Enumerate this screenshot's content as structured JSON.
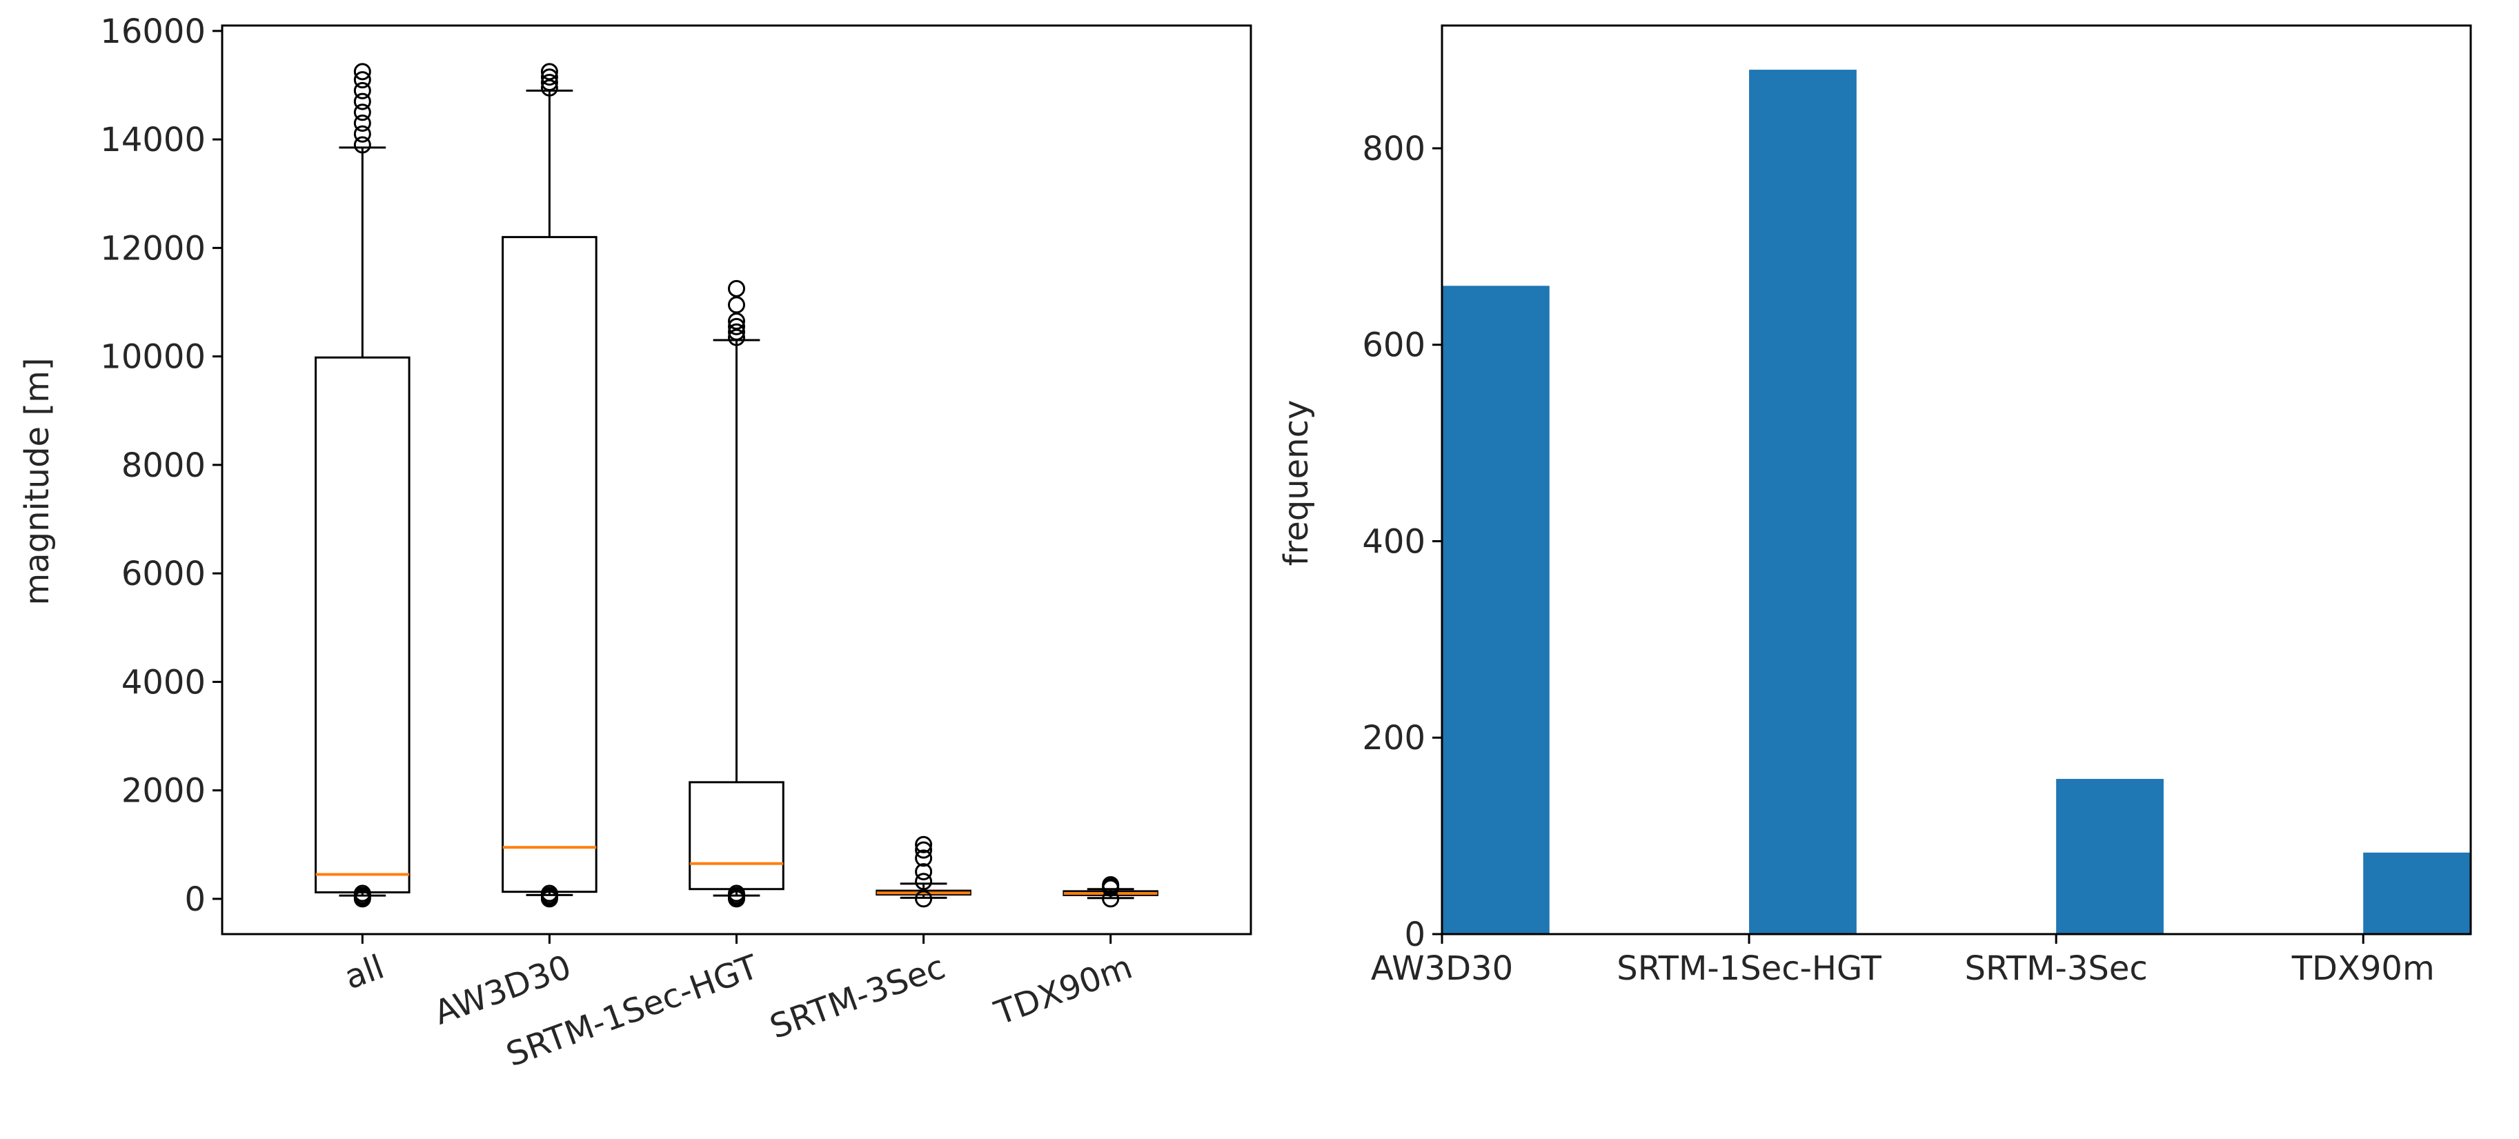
{
  "chart_data": [
    {
      "type": "box",
      "title": "",
      "xlabel": "",
      "ylabel": "magnitude [m]",
      "ylim": [
        -650,
        16100
      ],
      "yticks": [
        0,
        2000,
        4000,
        6000,
        8000,
        10000,
        12000,
        14000,
        16000
      ],
      "categories": [
        "all",
        "AW3D30",
        "SRTM-1Sec-HGT",
        "SRTM-3Sec",
        "TDX90m"
      ],
      "boxes": [
        {
          "q1": 120,
          "median": 450,
          "q3": 9980,
          "whisker_low": 60,
          "whisker_high": 13850,
          "fliers": [
            0,
            30,
            60,
            100,
            13900,
            14100,
            14300,
            14500,
            14700,
            14900,
            15100,
            15250
          ]
        },
        {
          "q1": 130,
          "median": 950,
          "q3": 12200,
          "whisker_low": 70,
          "whisker_high": 14900,
          "fliers": [
            0,
            30,
            60,
            100,
            14950,
            15050,
            15150,
            15250
          ]
        },
        {
          "q1": 180,
          "median": 650,
          "q3": 2150,
          "whisker_low": 60,
          "whisker_high": 10300,
          "fliers": [
            0,
            30,
            60,
            100,
            10350,
            10450,
            10550,
            10650,
            10950,
            11250
          ]
        },
        {
          "q1": 80,
          "median": 110,
          "q3": 150,
          "whisker_low": 20,
          "whisker_high": 280,
          "fliers": [
            0,
            320,
            500,
            750,
            900,
            1000
          ]
        },
        {
          "q1": 70,
          "median": 100,
          "q3": 140,
          "whisker_low": 15,
          "whisker_high": 180,
          "fliers": [
            0,
            200,
            230,
            260
          ]
        }
      ]
    },
    {
      "type": "bar",
      "title": "",
      "xlabel": "",
      "ylabel": "frequency",
      "ylim": [
        0,
        925
      ],
      "yticks": [
        0,
        200,
        400,
        600,
        800
      ],
      "categories": [
        "AW3D30",
        "SRTM-1Sec-HGT",
        "SRTM-3Sec",
        "TDX90m"
      ],
      "values": [
        660,
        880,
        158,
        83
      ],
      "color": "#1f77b4"
    }
  ],
  "colors": {
    "median": "#ff7f0e",
    "bar": "#1f77b4",
    "axis": "#000000"
  }
}
